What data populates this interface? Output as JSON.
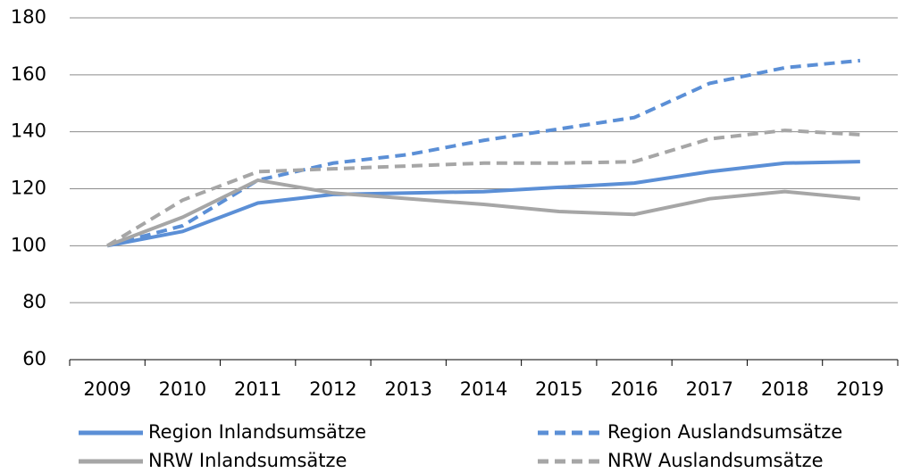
{
  "chart_data": {
    "type": "line",
    "categories": [
      "2009",
      "2010",
      "2011",
      "2012",
      "2013",
      "2014",
      "2015",
      "2016",
      "2017",
      "2018",
      "2019"
    ],
    "series": [
      {
        "name": "Region Inlandsumsätze",
        "color": "#5b8fd6",
        "dashed": false,
        "values": [
          100,
          105,
          115,
          118,
          118.5,
          119,
          120.5,
          122,
          126,
          129,
          129.5
        ]
      },
      {
        "name": "Region Auslandsumsätze",
        "color": "#5b8fd6",
        "dashed": true,
        "values": [
          100,
          107,
          123,
          129,
          132,
          137,
          141,
          145,
          157,
          162.5,
          165
        ]
      },
      {
        "name": "NRW Inlandsumsätze",
        "color": "#a6a6a6",
        "dashed": false,
        "values": [
          100,
          110,
          123,
          118.5,
          116.5,
          114.5,
          112,
          111,
          116.5,
          119,
          116.5
        ]
      },
      {
        "name": "NRW Auslandsumsätze",
        "color": "#a6a6a6",
        "dashed": true,
        "values": [
          100,
          116,
          126,
          127,
          128,
          129,
          129,
          129.5,
          137.5,
          140.5,
          139
        ]
      }
    ],
    "ylim": [
      60,
      180
    ],
    "yticks": [
      60,
      80,
      100,
      120,
      140,
      160,
      180
    ],
    "grid": true,
    "legend": "bottom"
  }
}
